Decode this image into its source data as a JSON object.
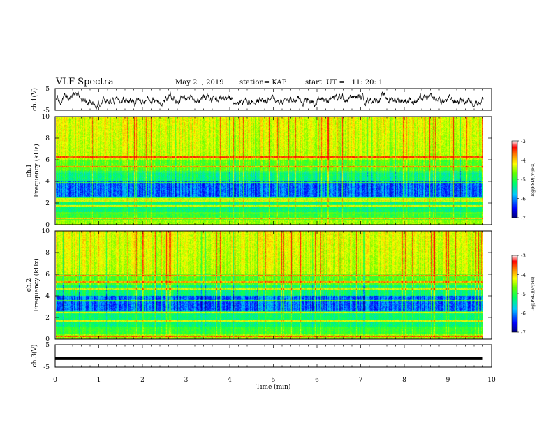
{
  "header": {
    "title": "VLF Spectra",
    "date": "May 2  , 2019",
    "station": "station= KAP",
    "start": "start  UT =   11: 20: 1"
  },
  "colors": {
    "background": "#ffffff",
    "axis": "#000000",
    "colormap": [
      "#00007f",
      "#0000ff",
      "#00c8ff",
      "#00ff64",
      "#64ff00",
      "#ffff00",
      "#ff8000",
      "#ff0000",
      "#ffffff"
    ]
  },
  "chart_data": [
    {
      "type": "line",
      "ylabel": "ch.1(V)",
      "ylim": [
        -5,
        5
      ],
      "yticks": [
        "5",
        "-5"
      ],
      "xlim": [
        0,
        10
      ],
      "description_series": "waveform voltage trace fluctuating roughly between -3 and +3 V"
    },
    {
      "type": "heatmap",
      "ylabel_channel": "ch.1",
      "ylabel": "Frequency  (kHz)",
      "ylim": [
        0,
        10
      ],
      "yticks": [
        "0",
        "2",
        "4",
        "6",
        "8",
        "10"
      ],
      "xlim": [
        0,
        10
      ],
      "colorbar": {
        "label": "log(PSD)(V²/Hz)",
        "range": [
          -7,
          -3
        ],
        "ticks": [
          "-3",
          "-4",
          "-5",
          "-6",
          "-7"
        ]
      }
    },
    {
      "type": "heatmap",
      "ylabel_channel": "ch.2",
      "ylabel": "Frequency  (kHz)",
      "ylim": [
        0,
        10
      ],
      "yticks": [
        "0",
        "2",
        "4",
        "6",
        "8",
        "10"
      ],
      "xlim": [
        0,
        10
      ],
      "colorbar": {
        "label": "log(PSD)(V²/Hz)",
        "range": [
          -7,
          -3
        ],
        "ticks": [
          "-3",
          "-4",
          "-5",
          "-6",
          "-7"
        ]
      }
    },
    {
      "type": "line",
      "ylabel": "ch.3(V)",
      "ylim": [
        -5,
        5
      ],
      "yticks": [
        "5",
        "-5"
      ],
      "xlim": [
        0,
        10
      ],
      "x": [
        0,
        9.8
      ],
      "y": [
        -1.2,
        -1.2
      ]
    }
  ],
  "xaxis": {
    "label": "Time  (min)",
    "ticks": [
      "0",
      "1",
      "2",
      "3",
      "4",
      "5",
      "6",
      "7",
      "8",
      "9",
      "10"
    ]
  }
}
